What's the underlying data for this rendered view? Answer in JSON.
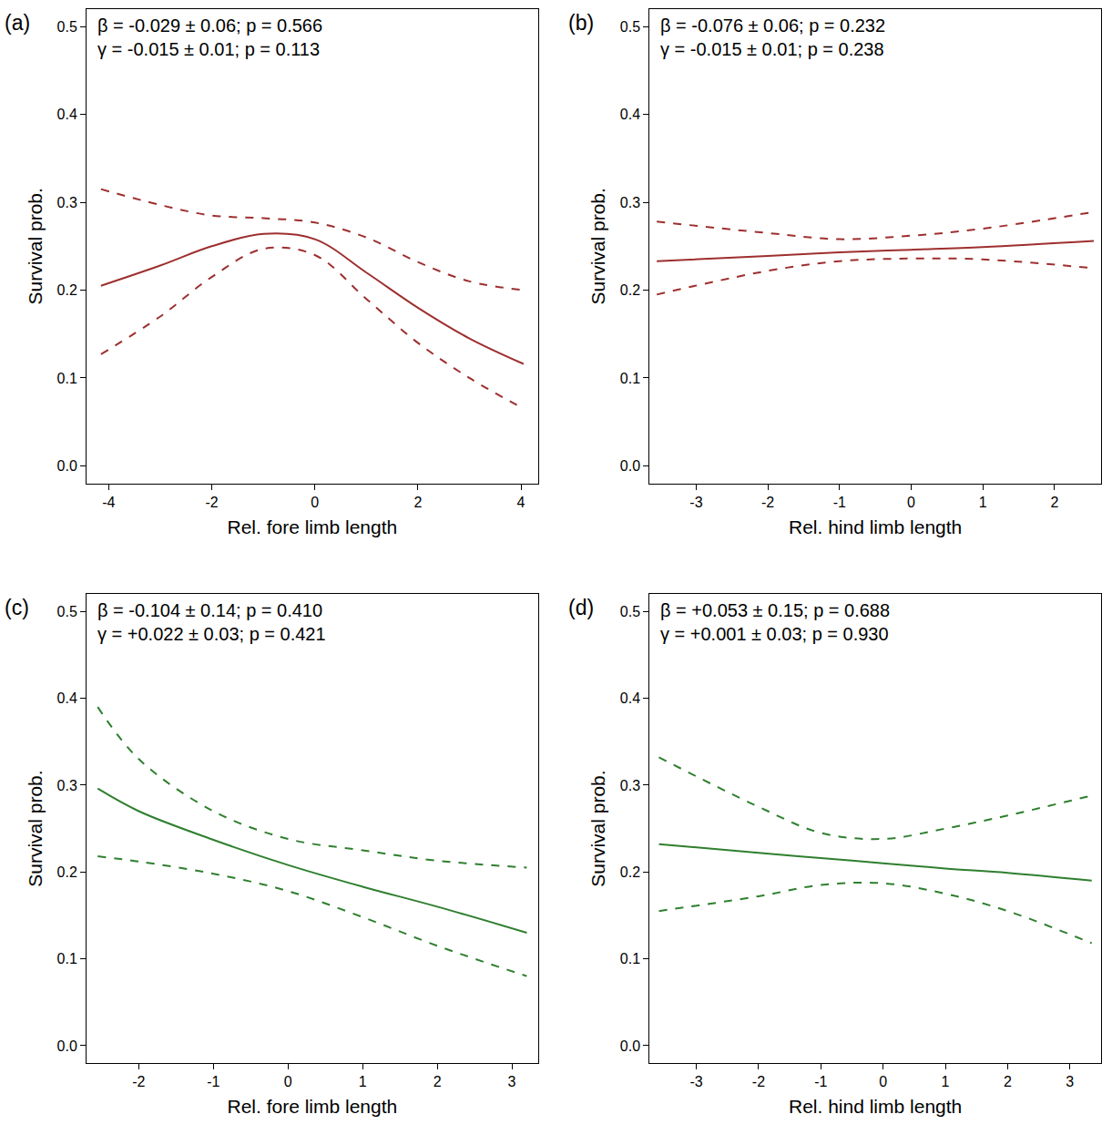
{
  "chart_data": [
    {
      "type": "line",
      "panel_label": "(a)",
      "annotations": [
        "β = -0.029 ± 0.06; p = 0.566",
        "γ = -0.015 ± 0.01; p = 0.113"
      ],
      "xlabel": "Rel. fore limb length",
      "ylabel": "Survival prob.",
      "x": [
        -4.15,
        -3,
        -2,
        -1,
        0,
        1,
        2,
        3,
        4.05
      ],
      "series": [
        {
          "color": "#9e2f2f",
          "line_style": "solid",
          "values": [
            0.205,
            0.228,
            0.25,
            0.264,
            0.258,
            0.22,
            0.18,
            0.145,
            0.116
          ]
        },
        {
          "color": "#9e2f2f",
          "line_style": "dashed",
          "values": [
            0.315,
            0.297,
            0.285,
            0.282,
            0.277,
            0.26,
            0.232,
            0.21,
            0.2
          ]
        },
        {
          "color": "#9e2f2f",
          "line_style": "dashed",
          "values": [
            0.127,
            0.17,
            0.215,
            0.247,
            0.24,
            0.19,
            0.14,
            0.1,
            0.065
          ]
        }
      ],
      "xlim": [
        -4.43,
        4.33
      ],
      "xticks": [
        -4,
        -2,
        0,
        2,
        4
      ],
      "ylim": [
        -0.02,
        0.52
      ],
      "yticks": [
        {
          "value": 0,
          "label": "0.0"
        },
        0.1,
        0.2,
        0.3,
        0.4,
        0.5
      ],
      "grid": false
    },
    {
      "type": "line",
      "panel_label": "(b)",
      "annotations": [
        "β = -0.076 ± 0.06; p = 0.232",
        "γ = -0.015 ± 0.01; p = 0.238"
      ],
      "xlabel": "Rel. hind limb length",
      "ylabel": "Survival prob.",
      "x": [
        -3.55,
        -2,
        -1,
        0,
        1,
        2.55
      ],
      "series": [
        {
          "color": "#9e2f2f",
          "line_style": "solid",
          "values": [
            0.233,
            0.239,
            0.243,
            0.246,
            0.249,
            0.256
          ]
        },
        {
          "color": "#9e2f2f",
          "line_style": "dashed",
          "values": [
            0.278,
            0.265,
            0.258,
            0.262,
            0.27,
            0.289
          ]
        },
        {
          "color": "#9e2f2f",
          "line_style": "dashed",
          "values": [
            0.195,
            0.222,
            0.233,
            0.236,
            0.235,
            0.225
          ]
        }
      ],
      "xlim": [
        -3.65,
        2.65
      ],
      "xticks": [
        -3,
        -2,
        -1,
        0,
        1,
        2
      ],
      "ylim": [
        -0.02,
        0.52
      ],
      "yticks": [
        {
          "value": 0,
          "label": "0.0"
        },
        0.1,
        0.2,
        0.3,
        0.4,
        0.5
      ],
      "grid": false
    },
    {
      "type": "line",
      "panel_label": "(c)",
      "annotations": [
        "β = -0.104 ± 0.14; p = 0.410",
        "γ = +0.022 ± 0.03; p = 0.421"
      ],
      "xlabel": "Rel. fore limb length",
      "ylabel": "Survival prob.",
      "x": [
        -2.55,
        -2,
        -1,
        0,
        1,
        2,
        3.2
      ],
      "series": [
        {
          "color": "#2f7f2f",
          "line_style": "solid",
          "values": [
            0.296,
            0.27,
            0.237,
            0.208,
            0.183,
            0.16,
            0.13
          ]
        },
        {
          "color": "#2f7f2f",
          "line_style": "dashed",
          "values": [
            0.39,
            0.33,
            0.27,
            0.238,
            0.225,
            0.213,
            0.205
          ]
        },
        {
          "color": "#2f7f2f",
          "line_style": "dashed",
          "values": [
            0.218,
            0.212,
            0.198,
            0.178,
            0.148,
            0.115,
            0.08
          ]
        }
      ],
      "xlim": [
        -2.7,
        3.35
      ],
      "xticks": [
        -2,
        -1,
        0,
        1,
        2,
        3
      ],
      "ylim": [
        -0.02,
        0.52
      ],
      "yticks": [
        {
          "value": 0,
          "label": "0.0"
        },
        0.1,
        0.2,
        0.3,
        0.4,
        0.5
      ],
      "grid": false
    },
    {
      "type": "line",
      "panel_label": "(d)",
      "annotations": [
        "β = +0.053 ± 0.15; p = 0.688",
        "γ = +0.001 ± 0.03; p = 0.930"
      ],
      "xlabel": "Rel. hind limb length",
      "ylabel": "Survival prob.",
      "x": [
        -3.6,
        -2,
        -1,
        0,
        1,
        2,
        3.35
      ],
      "series": [
        {
          "color": "#2f7f2f",
          "line_style": "solid",
          "values": [
            0.232,
            0.222,
            0.216,
            0.21,
            0.204,
            0.199,
            0.19
          ]
        },
        {
          "color": "#2f7f2f",
          "line_style": "dashed",
          "values": [
            0.332,
            0.275,
            0.245,
            0.238,
            0.25,
            0.265,
            0.288
          ]
        },
        {
          "color": "#2f7f2f",
          "line_style": "dashed",
          "values": [
            0.155,
            0.172,
            0.185,
            0.187,
            0.175,
            0.155,
            0.118
          ]
        }
      ],
      "xlim": [
        -3.75,
        3.5
      ],
      "xticks": [
        -3,
        -2,
        -1,
        0,
        1,
        2,
        3
      ],
      "ylim": [
        -0.02,
        0.52
      ],
      "yticks": [
        {
          "value": 0,
          "label": "0.0"
        },
        0.1,
        0.2,
        0.3,
        0.4,
        0.5
      ],
      "grid": false
    }
  ]
}
